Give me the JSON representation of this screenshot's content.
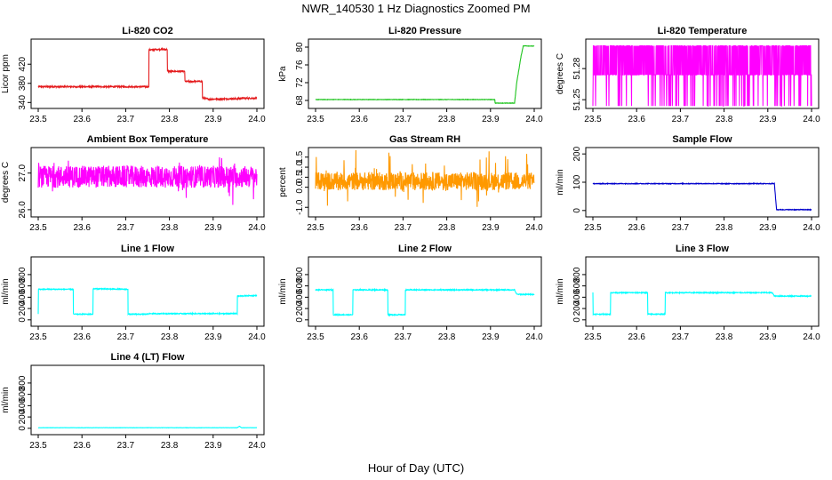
{
  "page": {
    "title": "NWR_140530  1 Hz Diagnostics Zoomed PM",
    "xlabel": "Hour of Day (UTC)"
  },
  "chart_data": [
    {
      "type": "line",
      "title": "Li-820 CO2",
      "ylabel": "Licor ppm",
      "color": "#e41a1c",
      "xlim": [
        23.5,
        24.0
      ],
      "ylim": [
        335,
        465
      ],
      "xticks": [
        "23.5",
        "23.6",
        "23.7",
        "23.8",
        "23.9",
        "24.0"
      ],
      "yticks": [
        "340",
        "380",
        "420"
      ],
      "x": [
        23.5,
        23.753,
        23.753,
        23.765,
        23.765,
        23.795,
        23.795,
        23.835,
        23.835,
        23.875,
        23.875,
        23.89,
        23.96,
        23.965,
        24.0
      ],
      "y": [
        373,
        373,
        450,
        450,
        451,
        451,
        405,
        405,
        384,
        384,
        350,
        347,
        348,
        349,
        349
      ],
      "noise": 1.5
    },
    {
      "type": "line",
      "title": "Li-820 Pressure",
      "ylabel": "kPa",
      "color": "#1ec41e",
      "xlim": [
        23.5,
        24.0
      ],
      "ylim": [
        67,
        81
      ],
      "xticks": [
        "23.5",
        "23.6",
        "23.7",
        "23.8",
        "23.9",
        "24.0"
      ],
      "yticks": [
        "68",
        "72",
        "76",
        "80"
      ],
      "x": [
        23.5,
        23.91,
        23.91,
        23.955,
        23.96,
        23.97,
        23.975,
        24.0
      ],
      "y": [
        68.2,
        68.2,
        67.4,
        67.4,
        72,
        78,
        80.3,
        80.2
      ],
      "noise": 0.05
    },
    {
      "type": "line",
      "title": "Li-820 Temperature",
      "ylabel": "degrees C",
      "color": "#ff00ff",
      "xlim": [
        23.5,
        24.0
      ],
      "ylim": [
        51.245,
        51.305
      ],
      "xticks": [
        "23.5",
        "23.6",
        "23.7",
        "23.8",
        "23.9",
        "24.0"
      ],
      "yticks": [
        "51.25",
        "51.28"
      ],
      "x": [
        23.5,
        24.0
      ],
      "y": [
        51.27,
        51.27
      ],
      "pattern": "quantized",
      "levels": [
        51.244,
        51.274,
        51.302
      ]
    },
    {
      "type": "line",
      "title": "Ambient Box Temperature",
      "ylabel": "degrees C",
      "color": "#ff00ff",
      "xlim": [
        23.5,
        24.0
      ],
      "ylim": [
        25.9,
        27.6
      ],
      "xticks": [
        "23.5",
        "23.6",
        "23.7",
        "23.8",
        "23.9",
        "24.0"
      ],
      "yticks": [
        "26.0",
        "27.0"
      ],
      "x": [
        23.5,
        24.0
      ],
      "y": [
        26.9,
        26.9
      ],
      "noise": 0.3,
      "spikes": 0.6
    },
    {
      "type": "line",
      "title": "Gas Stream RH",
      "ylabel": "percent",
      "color": "#ff9900",
      "xlim": [
        23.5,
        24.0
      ],
      "ylim": [
        -1.3,
        1.8
      ],
      "xticks": [
        "23.5",
        "23.6",
        "23.7",
        "23.8",
        "23.9",
        "24.0"
      ],
      "yticks": [
        "-1.0",
        "0.0",
        "0.5",
        "1.0",
        "1.5"
      ],
      "x": [
        23.5,
        24.0
      ],
      "y": [
        0.3,
        0.3
      ],
      "noise": 0.45,
      "spikes": 1.2
    },
    {
      "type": "line",
      "title": "Sample Flow",
      "ylabel": "ml/min",
      "color": "#0000cc",
      "xlim": [
        23.5,
        24.0
      ],
      "ylim": [
        -10,
        210
      ],
      "xticks": [
        "23.5",
        "23.6",
        "23.7",
        "23.8",
        "23.9",
        "24.0"
      ],
      "yticks": [
        "0",
        "100",
        "200"
      ],
      "x": [
        23.5,
        23.915,
        23.92,
        24.0
      ],
      "y": [
        95,
        95,
        3,
        3
      ],
      "noise": 1.2
    },
    {
      "type": "line",
      "title": "Line 1 Flow",
      "ylabel": "ml/min",
      "color": "#00ffff",
      "xlim": [
        23.5,
        24.0
      ],
      "ylim": [
        -50,
        1050
      ],
      "xticks": [
        "23.5",
        "23.6",
        "23.7",
        "23.8",
        "23.9",
        "24.0"
      ],
      "yticks": [
        "0",
        "200",
        "400",
        "600",
        "800"
      ],
      "x": [
        23.5,
        23.5,
        23.58,
        23.58,
        23.625,
        23.625,
        23.705,
        23.705,
        23.75,
        23.75,
        23.955,
        23.955,
        24.0
      ],
      "y": [
        100,
        540,
        540,
        100,
        100,
        550,
        540,
        100,
        100,
        110,
        110,
        420,
        430
      ],
      "noise": 8
    },
    {
      "type": "line",
      "title": "Line 2 Flow",
      "ylabel": "ml/min",
      "color": "#00ffff",
      "xlim": [
        23.5,
        24.0
      ],
      "ylim": [
        -50,
        1050
      ],
      "xticks": [
        "23.5",
        "23.6",
        "23.7",
        "23.8",
        "23.9",
        "24.0"
      ],
      "yticks": [
        "0",
        "200",
        "400",
        "600",
        "800"
      ],
      "x": [
        23.5,
        23.54,
        23.54,
        23.585,
        23.585,
        23.665,
        23.665,
        23.705,
        23.705,
        23.955,
        23.96,
        24.0
      ],
      "y": [
        530,
        530,
        90,
        90,
        530,
        530,
        90,
        90,
        530,
        530,
        450,
        450
      ],
      "noise": 8
    },
    {
      "type": "line",
      "title": "Line 3 Flow",
      "ylabel": "ml/min",
      "color": "#00ffff",
      "xlim": [
        23.5,
        24.0
      ],
      "ylim": [
        -50,
        1050
      ],
      "xticks": [
        "23.5",
        "23.6",
        "23.7",
        "23.8",
        "23.9",
        "24.0"
      ],
      "yticks": [
        "0",
        "200",
        "400",
        "600",
        "800"
      ],
      "x": [
        23.5,
        23.5,
        23.54,
        23.54,
        23.625,
        23.625,
        23.665,
        23.665,
        23.91,
        23.915,
        24.0
      ],
      "y": [
        480,
        100,
        100,
        480,
        480,
        100,
        100,
        480,
        480,
        420,
        420
      ],
      "noise": 8
    },
    {
      "type": "line",
      "title": "Line 4 (LT) Flow",
      "ylabel": "ml/min",
      "color": "#00ffff",
      "xlim": [
        23.5,
        24.0
      ],
      "ylim": [
        -50,
        1050
      ],
      "xticks": [
        "23.5",
        "23.6",
        "23.7",
        "23.8",
        "23.9",
        "24.0"
      ],
      "yticks": [
        "0",
        "200",
        "400",
        "600",
        "800"
      ],
      "x": [
        23.5,
        23.955,
        23.96,
        23.965,
        24.0
      ],
      "y": [
        10,
        10,
        35,
        10,
        10
      ],
      "noise": 2
    }
  ]
}
